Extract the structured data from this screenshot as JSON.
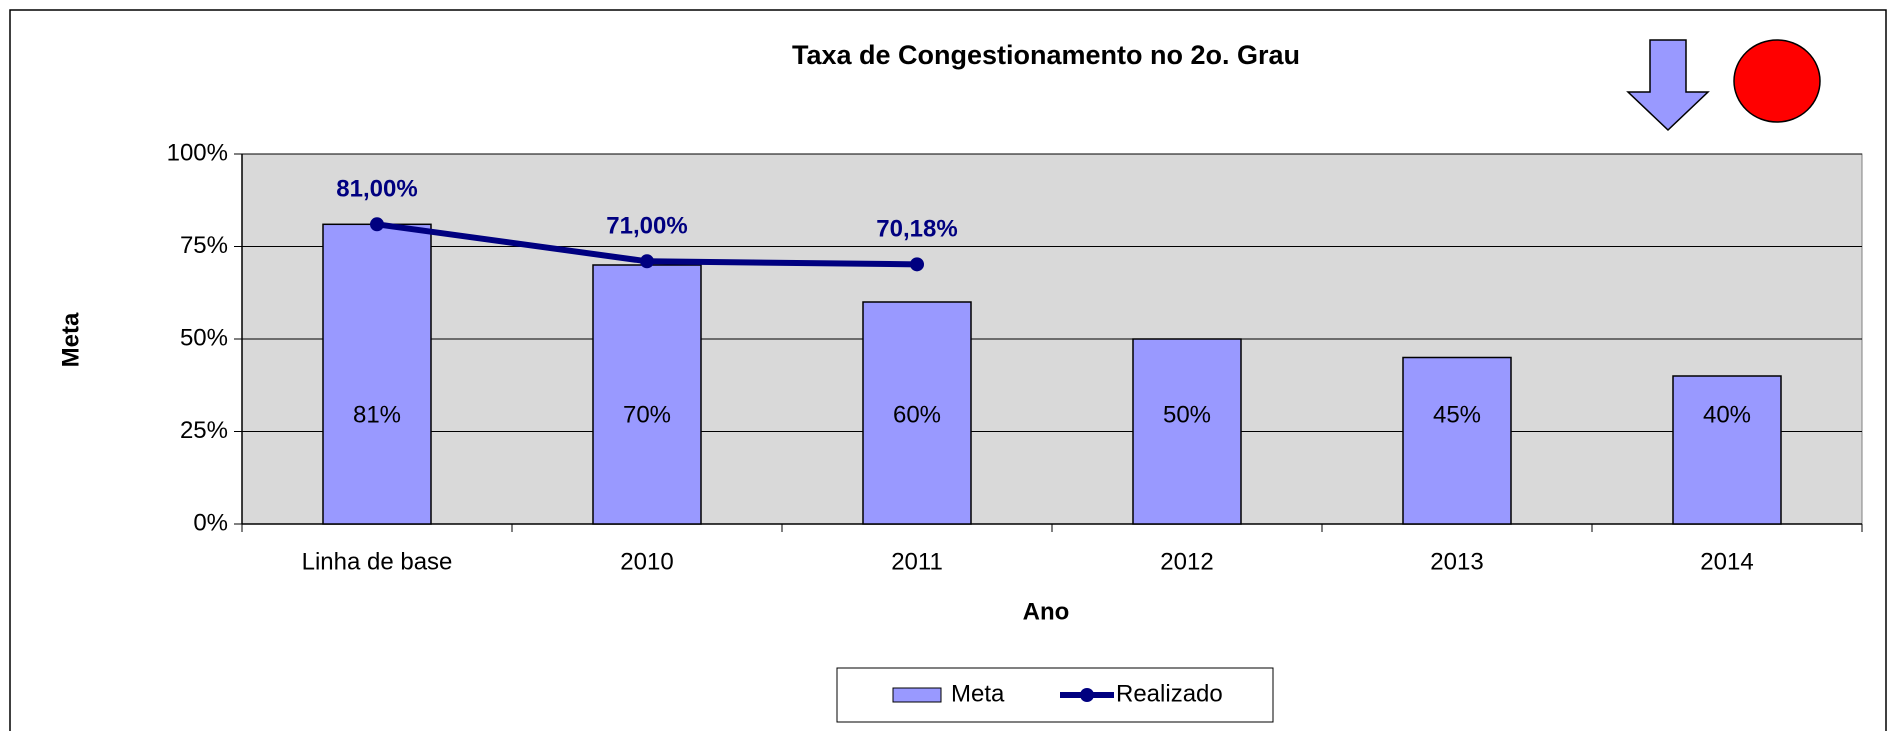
{
  "chart_data": {
    "type": "bar",
    "title": "Taxa de Congestionamento no 2o. Grau",
    "categories": [
      "Linha de base",
      "2010",
      "2011",
      "2012",
      "2013",
      "2014"
    ],
    "series": [
      {
        "name": "Meta",
        "type": "bar",
        "color": "#9999ff",
        "values": [
          81,
          70,
          60,
          50,
          45,
          40
        ],
        "value_labels": [
          "81%",
          "70%",
          "60%",
          "50%",
          "45%",
          "40%"
        ]
      },
      {
        "name": "Realizado",
        "type": "line",
        "color": "#000080",
        "values": [
          81,
          71,
          70.18,
          null,
          null,
          null
        ],
        "value_labels": [
          "81,00%",
          "71,00%",
          "70,18%",
          null,
          null,
          null
        ]
      }
    ],
    "ylim": [
      0,
      100
    ],
    "yticks": [
      {
        "value": 0,
        "label": "0%"
      },
      {
        "value": 25,
        "label": "25%"
      },
      {
        "value": 50,
        "label": "50%"
      },
      {
        "value": 75,
        "label": "75%"
      },
      {
        "value": 100,
        "label": "100%"
      }
    ],
    "xlabel": "Ano",
    "ylabel": "Meta",
    "grid": true,
    "legend": "bottom"
  }
}
